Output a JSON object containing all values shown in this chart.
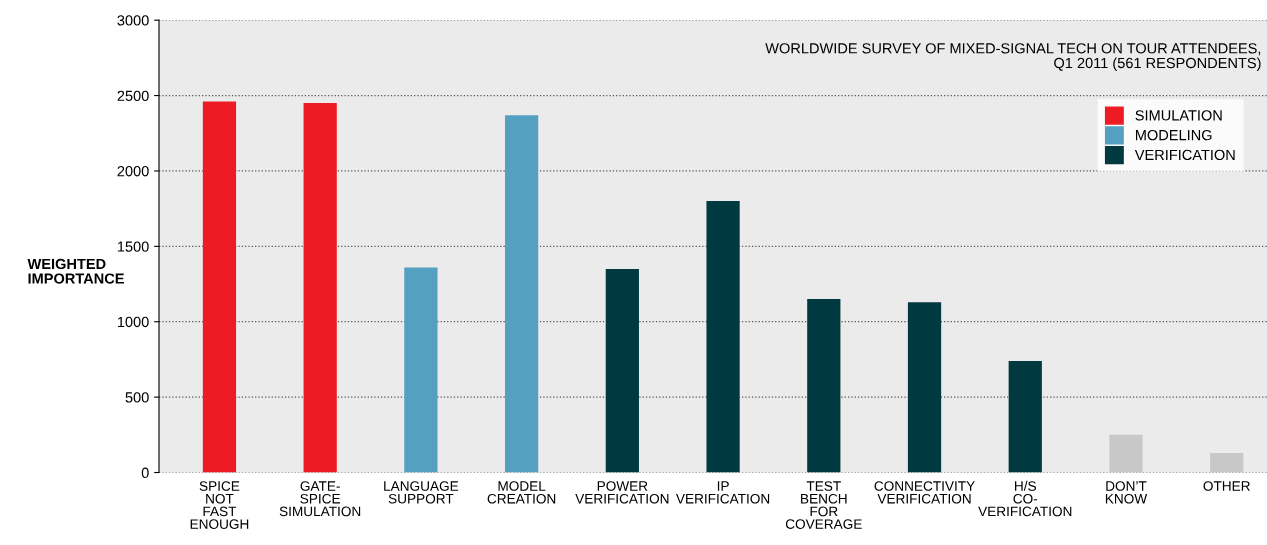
{
  "chart_data": {
    "type": "bar",
    "ylabel": "WEIGHTED\nIMPORTANCE",
    "annotations": [
      "WORLDWIDE SURVEY OF MIXED-SIGNAL TECH ON TOUR ATTENDEES,\nQ1 2011 (561 RESPONDENTS)"
    ],
    "categories": [
      "SPICE\nNOT\nFAST\nENOUGH",
      "GATE-\nSPICE\nSIMULATION",
      "LANGUAGE\nSUPPORT",
      "MODEL\nCREATION",
      "POWER\nVERIFICATION",
      "IP\nVERIFICATION",
      "TEST\nBENCH\nFOR\nCOVERAGE",
      "CONNECTIVITY\nVERIFICATION",
      "H/S\nCO-\nVERIFICATION",
      "DON’T\nKNOW",
      "OTHER"
    ],
    "series": [
      {
        "name": "SIMULATION",
        "color": "#ed1c24",
        "values": [
          2460,
          2450,
          null,
          null,
          null,
          null,
          null,
          null,
          null,
          null,
          null
        ]
      },
      {
        "name": "MODELING",
        "color": "#55a0c0",
        "values": [
          null,
          null,
          1360,
          2370,
          null,
          null,
          null,
          null,
          null,
          null,
          null
        ]
      },
      {
        "name": "VERIFICATION",
        "color": "#003a40",
        "values": [
          null,
          null,
          null,
          null,
          1350,
          1800,
          1150,
          1130,
          740,
          null,
          null
        ]
      },
      {
        "color": "#c8c8c8",
        "values": [
          null,
          null,
          null,
          null,
          null,
          null,
          null,
          null,
          null,
          250,
          130
        ]
      }
    ],
    "ylim": [
      0,
      3000
    ],
    "yticks": [
      0,
      500,
      1000,
      1500,
      2000,
      2500,
      3000
    ],
    "grid": "y",
    "legend": "top right"
  }
}
